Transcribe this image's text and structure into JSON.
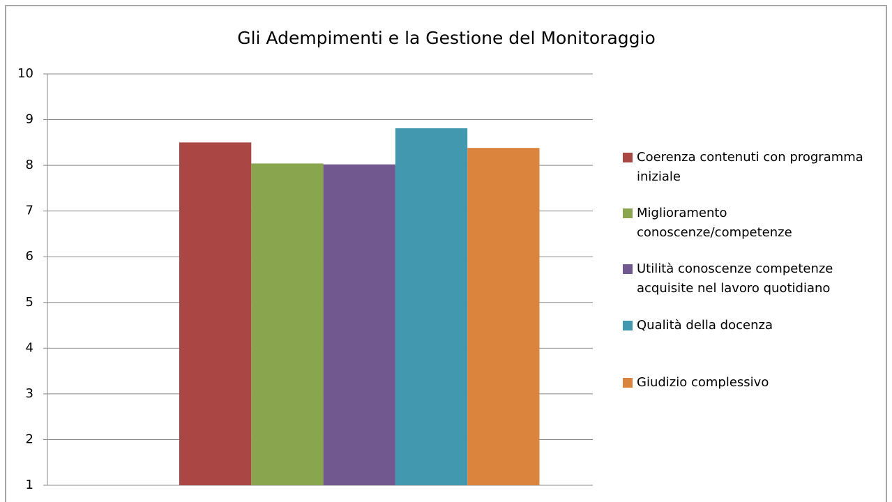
{
  "chart_data": {
    "type": "bar",
    "title": "Gli Adempimenti e la Gestione del Monitoraggio",
    "categories": [
      null
    ],
    "series": [
      {
        "name": "Coerenza contenuti con programma iniziale",
        "color": "#AA4643",
        "values": [
          8.5
        ]
      },
      {
        "name": "Miglioramento conoscenze/competenze",
        "color": "#89A54E",
        "values": [
          8.04
        ]
      },
      {
        "name": "Utilità conoscenze competenze acquisite nel lavoro quotidiano",
        "color": "#71588F",
        "values": [
          8.02
        ]
      },
      {
        "name": "Qualità della docenza",
        "color": "#4198AF",
        "values": [
          8.81
        ]
      },
      {
        "name": "Giudizio complessivo",
        "color": "#DB843D",
        "values": [
          8.38
        ]
      }
    ],
    "ylim": [
      1,
      10
    ],
    "yticks": [
      1,
      2,
      3,
      4,
      5,
      6,
      7,
      8,
      9,
      10
    ],
    "grid": true,
    "legend": "right"
  }
}
